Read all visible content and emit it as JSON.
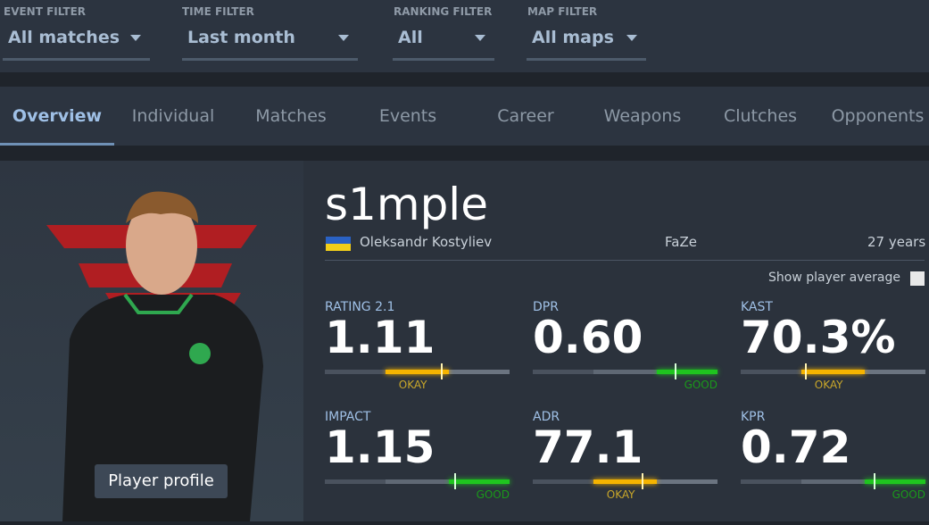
{
  "filters": [
    {
      "label": "EVENT FILTER",
      "value": "All matches"
    },
    {
      "label": "TIME FILTER",
      "value": "Last month"
    },
    {
      "label": "RANKING FILTER",
      "value": "All"
    },
    {
      "label": "MAP FILTER",
      "value": "All maps"
    }
  ],
  "tabs": [
    "Overview",
    "Individual",
    "Matches",
    "Events",
    "Career",
    "Weapons",
    "Clutches",
    "Opponents"
  ],
  "active_tab": "Overview",
  "player": {
    "nickname": "s1mple",
    "real_name": "Oleksandr Kostyliev",
    "team": "FaZe",
    "age": "27 years",
    "profile_button": "Player profile",
    "country_flag": "Ukraine"
  },
  "show_average_label": "Show player average",
  "colors": {
    "okay": "#f5b400",
    "good": "#1fc41f"
  },
  "stats": [
    {
      "label": "RATING 2.1",
      "value": "1.11",
      "grade": "OKAY",
      "marker": 0.63
    },
    {
      "label": "DPR",
      "value": "0.60",
      "grade": "GOOD",
      "marker": 0.77
    },
    {
      "label": "KAST",
      "value": "70.3%",
      "grade": "OKAY",
      "marker": 0.35
    },
    {
      "label": "IMPACT",
      "value": "1.15",
      "grade": "GOOD",
      "marker": 0.7
    },
    {
      "label": "ADR",
      "value": "77.1",
      "grade": "OKAY",
      "marker": 0.59
    },
    {
      "label": "KPR",
      "value": "0.72",
      "grade": "GOOD",
      "marker": 0.72
    }
  ]
}
